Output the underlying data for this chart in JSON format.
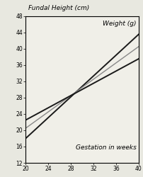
{
  "title_left": "Fundal Height (cm)",
  "title_right": "Weight (g)",
  "xlabel": "Gestation in weeks",
  "xlim": [
    20,
    40
  ],
  "ylim": [
    12,
    48
  ],
  "xticks": [
    20,
    24,
    28,
    32,
    36,
    40
  ],
  "yticks": [
    12,
    16,
    20,
    24,
    28,
    32,
    36,
    40,
    44,
    48
  ],
  "lines": [
    {
      "x": [
        20,
        40
      ],
      "y": [
        18.0,
        43.5
      ],
      "color": "#1a1a1a",
      "lw": 1.4,
      "style": "-"
    },
    {
      "x": [
        20,
        40
      ],
      "y": [
        20.5,
        40.5
      ],
      "color": "#888888",
      "lw": 1.0,
      "style": "-"
    },
    {
      "x": [
        20,
        40
      ],
      "y": [
        22.5,
        37.5
      ],
      "color": "#1a1a1a",
      "lw": 1.4,
      "style": "-"
    }
  ],
  "bg_color": "#e8e8e0",
  "plot_bg": "#f0efe8",
  "title_fontsize": 6.5,
  "label_fontsize": 6.5,
  "tick_fontsize": 5.5
}
